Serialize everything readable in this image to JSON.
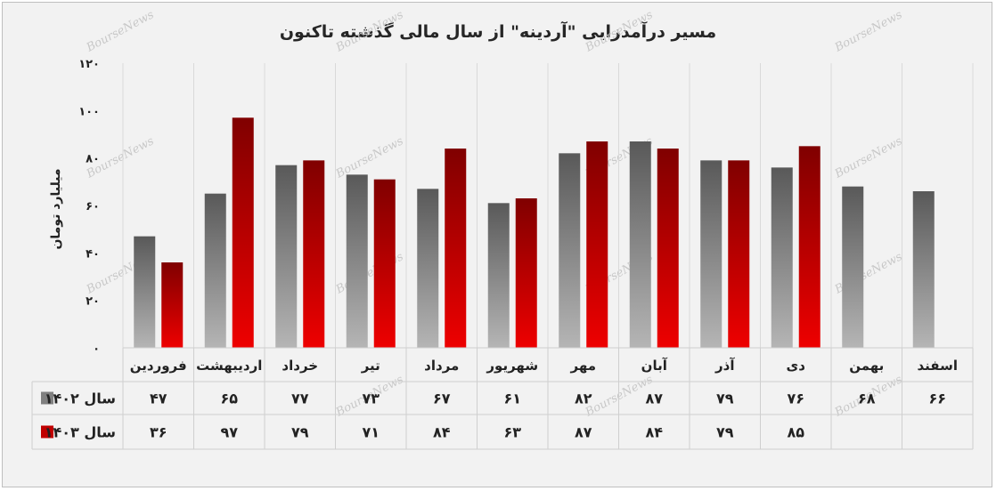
{
  "chart_data": {
    "type": "bar",
    "title": "مسیر درآمدزایی \"آردینه\" از سال مالی گذشته تاکنون",
    "ylabel": "میلیارد تومان",
    "xlabel": "",
    "ylim": [
      0,
      120
    ],
    "yticks": [
      0,
      20,
      40,
      60,
      80,
      100,
      120
    ],
    "ytick_labels": [
      "۰",
      "۲۰",
      "۴۰",
      "۶۰",
      "۸۰",
      "۱۰۰",
      "۱۲۰"
    ],
    "grid": "vertical",
    "legend": "table-left",
    "categories": [
      "فروردین",
      "اردیبهشت",
      "خرداد",
      "تیر",
      "مرداد",
      "شهریور",
      "مهر",
      "آبان",
      "آذر",
      "دی",
      "بهمن",
      "اسفند"
    ],
    "series": [
      {
        "name": "سال ۱۴۰۲",
        "color": "#808080",
        "values": [
          47,
          65,
          77,
          73,
          67,
          61,
          82,
          87,
          79,
          76,
          68,
          66
        ],
        "labels": [
          "۴۷",
          "۶۵",
          "۷۷",
          "۷۳",
          "۶۷",
          "۶۱",
          "۸۲",
          "۸۷",
          "۷۹",
          "۷۶",
          "۶۸",
          "۶۶"
        ]
      },
      {
        "name": "سال ۱۴۰۳",
        "color": "#c00000",
        "values": [
          36,
          97,
          79,
          71,
          84,
          63,
          87,
          84,
          79,
          85,
          null,
          null
        ],
        "labels": [
          "۳۶",
          "۹۷",
          "۷۹",
          "۷۱",
          "۸۴",
          "۶۳",
          "۸۷",
          "۸۴",
          "۷۹",
          "۸۵",
          "",
          ""
        ]
      }
    ],
    "watermark": "BourseNews"
  }
}
